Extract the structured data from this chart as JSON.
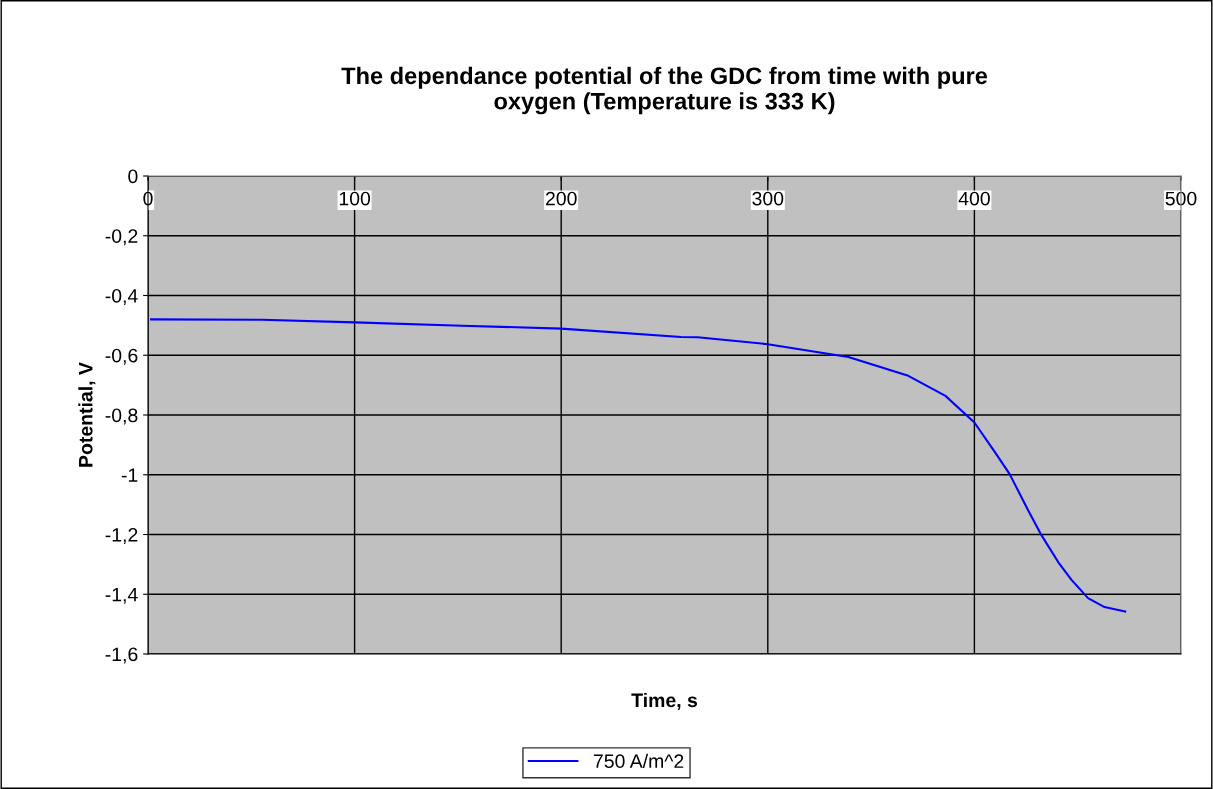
{
  "chart_data": {
    "type": "line",
    "title": "The dependance potential of the GDC from time with pure\noxygen (Temperature is 333 K)",
    "xlabel": "Time, s",
    "ylabel": "Potential, V",
    "xlim": [
      0,
      500
    ],
    "xticks": [
      0,
      100,
      200,
      300,
      400,
      500
    ],
    "ylim": [
      -1.6,
      0
    ],
    "yticks": [
      {
        "value": 0,
        "label": "0"
      },
      {
        "value": -0.2,
        "label": "-0,2"
      },
      {
        "value": -0.4,
        "label": "-0,4"
      },
      {
        "value": -0.6,
        "label": "-0,6"
      },
      {
        "value": -0.8,
        "label": "-0,8"
      },
      {
        "value": -1,
        "label": "-1"
      },
      {
        "value": -1.2,
        "label": "-1,2"
      },
      {
        "value": -1.4,
        "label": "-1,4"
      },
      {
        "value": -1.6,
        "label": "-1,6"
      }
    ],
    "grid": true,
    "legend": "bottom",
    "marker": "none",
    "line_style": "solid",
    "series": [
      {
        "name": "750 A/m^2",
        "color": "#0000ff",
        "x": [
          1.5,
          55,
          100,
          152,
          200,
          258,
          266,
          300,
          339,
          368,
          386,
          400,
          410,
          417,
          426,
          432,
          441,
          447,
          455,
          463,
          473
        ],
        "values": [
          -0.48,
          -0.481,
          -0.49,
          -0.501,
          -0.511,
          -0.539,
          -0.54,
          -0.563,
          -0.606,
          -0.669,
          -0.736,
          -0.825,
          -0.925,
          -0.997,
          -1.119,
          -1.197,
          -1.297,
          -1.352,
          -1.413,
          -1.443,
          -1.458
        ]
      }
    ]
  }
}
